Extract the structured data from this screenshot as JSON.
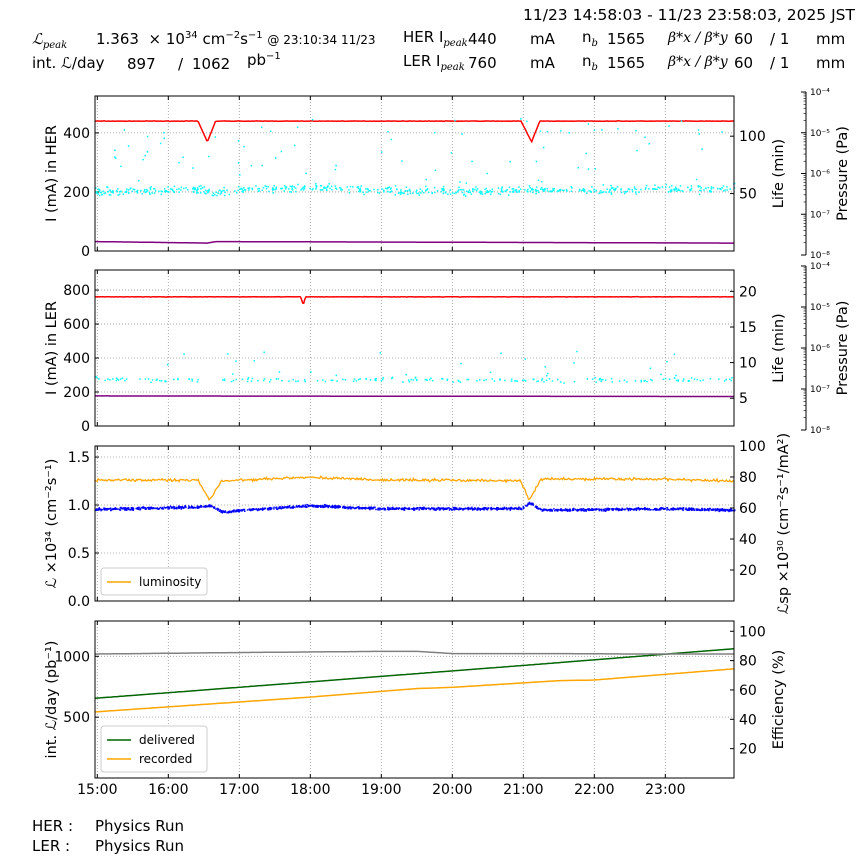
{
  "header": {
    "time_range": "11/23 14:58:03 - 11/23 23:58:03, 2025 JST",
    "lpeak_label": "ℒ",
    "lpeak_sub": "peak",
    "lpeak_value": "1.363",
    "lpeak_unit_base": "× 10",
    "lpeak_unit_exp": "34",
    "lpeak_unit_cm": "cm",
    "lpeak_unit_cm_exp": "−2",
    "lpeak_unit_s": "s",
    "lpeak_unit_s_exp": "−1",
    "lpeak_time": "@ 23:10:34 11/23",
    "intl_label": "int. ℒ/day",
    "intl_recorded": "897",
    "intl_sep": "/",
    "intl_delivered": "1062",
    "intl_unit": "pb",
    "intl_unit_exp": "−1",
    "her": {
      "label": "HER I",
      "sub": "peak",
      "value": "440",
      "unit": "mA",
      "nb_label": "n",
      "nb_sub": "b",
      "nb": "1565",
      "beta_label": "β*x / β*y",
      "betax": "60",
      "betay": "/ 1",
      "beta_unit": "mm"
    },
    "ler": {
      "label": "LER I",
      "sub": "peak",
      "value": "760",
      "unit": "mA",
      "nb_label": "n",
      "nb_sub": "b",
      "nb": "1565",
      "beta_label": "β*x / β*y",
      "betax": "60",
      "betay": "/ 1",
      "beta_unit": "mm"
    }
  },
  "footer": {
    "her_label": "HER :",
    "her_status": "Physics Run",
    "ler_label": "LER :",
    "ler_status": "Physics Run"
  },
  "chart_data": [
    {
      "type": "line",
      "ylabel": "I (mA) in HER",
      "y2label": "Life (min)",
      "y3label": "Pressure (Pa)",
      "xlim": [
        "14:58:03",
        "23:58:03"
      ],
      "ylim": [
        0,
        525
      ],
      "yticks": [
        0,
        200,
        400
      ],
      "y2lim": [
        0,
        135
      ],
      "y2ticks": [
        50,
        100
      ],
      "y3lim": [
        1e-08,
        0.0001
      ],
      "y3scale": "log",
      "y3ticks": [
        "10⁻⁸",
        "10⁻⁷",
        "10⁻⁶",
        "10⁻⁵",
        "10⁻⁴"
      ],
      "grid": true,
      "series": [
        {
          "kind": "current",
          "axis": "left",
          "color": "#ff0000",
          "points": [
            [
              "14:58",
              440
            ],
            [
              "16:25",
              440
            ],
            [
              "16:33",
              370
            ],
            [
              "16:40",
              440
            ],
            [
              "20:58",
              440
            ],
            [
              "21:07",
              370
            ],
            [
              "21:14",
              440
            ],
            [
              "23:58",
              440
            ]
          ]
        },
        {
          "kind": "lifetime",
          "axis": "right",
          "color": "#00ffff",
          "style": "scatter",
          "points": [
            [
              "14:58",
              52
            ],
            [
              "15:30",
              53
            ],
            [
              "16:30",
              54
            ],
            [
              "16:35",
              50
            ],
            [
              "17:00",
              54
            ],
            [
              "18:00",
              56
            ],
            [
              "19:00",
              53
            ],
            [
              "20:00",
              52
            ],
            [
              "21:00",
              54
            ],
            [
              "22:00",
              53
            ],
            [
              "23:00",
              54
            ],
            [
              "23:58",
              55
            ]
          ]
        },
        {
          "kind": "pressure",
          "axis": "pressure",
          "color": "#800080",
          "points": [
            [
              "14:58",
              1.75e-08
            ],
            [
              "16:33",
              1.6e-08
            ],
            [
              "16:40",
              1.75e-08
            ],
            [
              "23:58",
              1.6e-08
            ]
          ]
        }
      ]
    },
    {
      "type": "line",
      "ylabel": "I (mA) in LER",
      "y2label": "Life (min)",
      "y3label": "Pressure (Pa)",
      "xlim": [
        "14:58:03",
        "23:58:03"
      ],
      "ylim": [
        0,
        918
      ],
      "yticks": [
        0,
        200,
        400,
        600,
        800
      ],
      "y2lim": [
        1.1,
        23
      ],
      "y2ticks": [
        5,
        10,
        15,
        20
      ],
      "y3lim": [
        1e-08,
        0.0001
      ],
      "y3scale": "log",
      "y3ticks": [
        "10⁻⁸",
        "10⁻⁷",
        "10⁻⁶",
        "10⁻⁵",
        "10⁻⁴"
      ],
      "grid": true,
      "series": [
        {
          "kind": "current",
          "axis": "left",
          "color": "#ff0000",
          "points": [
            [
              "14:58",
              760
            ],
            [
              "17:52",
              760
            ],
            [
              "17:54",
              712
            ],
            [
              "17:56",
              760
            ],
            [
              "23:58",
              760
            ]
          ]
        },
        {
          "kind": "lifetime",
          "axis": "right",
          "color": "#00ffff",
          "style": "scatter-sparse",
          "points": [
            [
              "14:58",
              7.7
            ],
            [
              "17:00",
              7.6
            ],
            [
              "19:00",
              7.7
            ],
            [
              "21:00",
              7.6
            ],
            [
              "23:58",
              7.7
            ]
          ]
        },
        {
          "kind": "pressure",
          "axis": "pressure",
          "color": "#800080",
          "points": [
            [
              "14:58",
              5.9e-08
            ],
            [
              "23:58",
              5.7e-08
            ]
          ]
        }
      ]
    },
    {
      "type": "line",
      "ylabel": "ℒ ×10³⁴ (cm⁻²s⁻¹)",
      "y2label": "ℒsp ×10³⁰ (cm⁻²s⁻¹/mA²)",
      "xlim": [
        "14:58:03",
        "23:58:03"
      ],
      "ylim": [
        0,
        1.615
      ],
      "yticks": [
        0.0,
        0.5,
        1.0,
        1.5
      ],
      "yticklabels": [
        "0.0",
        "0.5",
        "1.0",
        "1.5"
      ],
      "y2lim": [
        0,
        100
      ],
      "y2ticks": [
        20,
        40,
        60,
        80,
        100
      ],
      "grid": true,
      "legend": "bottom-left",
      "series": [
        {
          "name": "luminosity",
          "axis": "left",
          "color": "#ffa500",
          "points": [
            [
              "14:58",
              1.26
            ],
            [
              "16:25",
              1.26
            ],
            [
              "16:35",
              1.05
            ],
            [
              "16:45",
              1.25
            ],
            [
              "18:00",
              1.29
            ],
            [
              "19:00",
              1.26
            ],
            [
              "20:00",
              1.26
            ],
            [
              "20:58",
              1.25
            ],
            [
              "21:05",
              1.05
            ],
            [
              "21:15",
              1.27
            ],
            [
              "23:00",
              1.27
            ],
            [
              "23:58",
              1.25
            ]
          ]
        },
        {
          "kind": "specific-luminosity",
          "axis": "right",
          "color": "#0000ff",
          "style": "dots",
          "points": [
            [
              "14:58",
              59.5
            ],
            [
              "16:25",
              61
            ],
            [
              "16:35",
              62
            ],
            [
              "16:45",
              58
            ],
            [
              "18:00",
              62
            ],
            [
              "19:00",
              60
            ],
            [
              "20:58",
              60
            ],
            [
              "21:05",
              64
            ],
            [
              "21:15",
              59
            ],
            [
              "23:00",
              60
            ],
            [
              "23:58",
              59
            ]
          ]
        }
      ]
    },
    {
      "type": "line",
      "ylabel": "int. ℒ/day (pb⁻¹)",
      "y2label": "Efficiency (%)",
      "xlim": [
        "14:58:03",
        "23:58:03"
      ],
      "xticks": [
        "15:00",
        "16:00",
        "17:00",
        "18:00",
        "19:00",
        "20:00",
        "21:00",
        "22:00",
        "23:00"
      ],
      "ylim": [
        0,
        1290
      ],
      "yticks": [
        500,
        1000
      ],
      "y2lim": [
        0,
        107
      ],
      "y2ticks": [
        20,
        40,
        60,
        80,
        100
      ],
      "grid": true,
      "legend": "bottom-left",
      "series": [
        {
          "name": "delivered",
          "axis": "left",
          "color": "#006400",
          "points": [
            [
              "14:58",
              655
            ],
            [
              "18:00",
              790
            ],
            [
              "21:00",
              925
            ],
            [
              "23:58",
              1062
            ]
          ]
        },
        {
          "name": "recorded",
          "axis": "left",
          "color": "#ffa500",
          "points": [
            [
              "14:58",
              543
            ],
            [
              "18:00",
              665
            ],
            [
              "19:30",
              735
            ],
            [
              "20:00",
              745
            ],
            [
              "21:30",
              800
            ],
            [
              "22:00",
              805
            ],
            [
              "23:58",
              897
            ]
          ]
        },
        {
          "kind": "efficiency",
          "axis": "right",
          "color": "#808080",
          "points": [
            [
              "14:58",
              84.5
            ],
            [
              "17:00",
              85.5
            ],
            [
              "19:00",
              86.3
            ],
            [
              "19:30",
              86.3
            ],
            [
              "20:00",
              84.8
            ],
            [
              "21:30",
              84.8
            ],
            [
              "22:30",
              84.5
            ],
            [
              "23:58",
              84.5
            ]
          ]
        }
      ]
    }
  ]
}
